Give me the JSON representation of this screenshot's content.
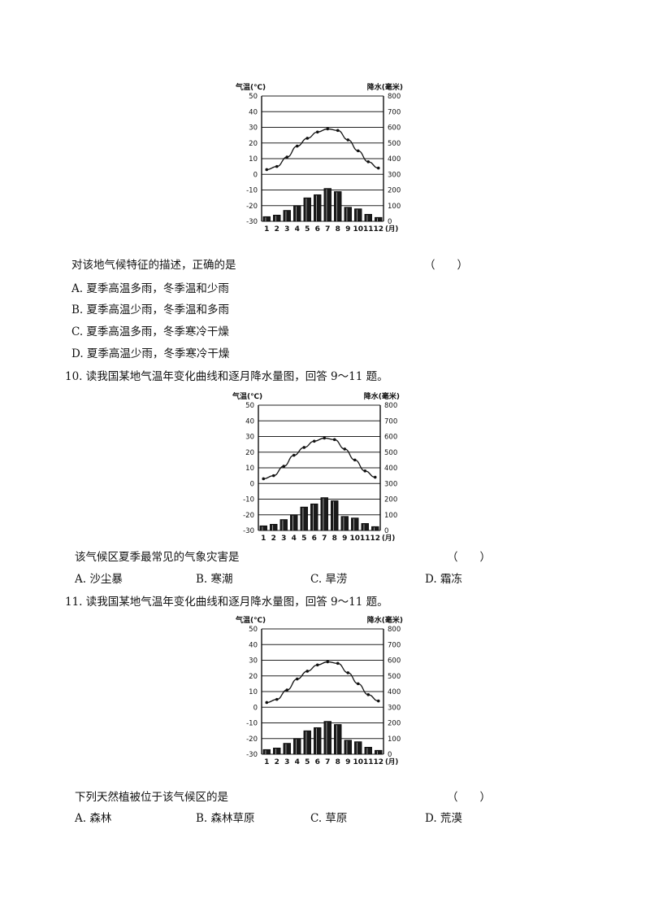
{
  "chart_data": [
    {
      "type": "bar+line",
      "categories": [
        "1",
        "2",
        "3",
        "4",
        "5",
        "6",
        "7",
        "8",
        "9",
        "10",
        "11",
        "12"
      ],
      "x_unit": "(月)",
      "left_axis": {
        "label": "气温(℃)",
        "ticks": [
          "50",
          "40",
          "30",
          "20",
          "10",
          "0",
          "-10",
          "-20",
          "-30"
        ],
        "range": [
          -30,
          50
        ]
      },
      "right_axis": {
        "label": "降水(毫米)",
        "ticks": [
          "800",
          "700",
          "600",
          "500",
          "400",
          "300",
          "200",
          "100",
          "0"
        ],
        "range": [
          0,
          800
        ]
      },
      "series": [
        {
          "kind": "line",
          "axis": "left",
          "values": [
            3,
            5,
            11,
            18,
            23,
            27,
            29,
            28,
            22,
            15,
            8,
            4
          ]
        },
        {
          "kind": "bar",
          "axis": "right",
          "values": [
            30,
            40,
            70,
            100,
            150,
            170,
            210,
            190,
            90,
            80,
            45,
            25
          ]
        }
      ]
    },
    {
      "type": "bar+line",
      "categories": [
        "1",
        "2",
        "3",
        "4",
        "5",
        "6",
        "7",
        "8",
        "9",
        "10",
        "11",
        "12"
      ],
      "x_unit": "(月)",
      "left_axis": {
        "label": "气温(℃)",
        "ticks": [
          "50",
          "40",
          "30",
          "20",
          "10",
          "0",
          "-10",
          "-20",
          "-30"
        ],
        "range": [
          -30,
          50
        ]
      },
      "right_axis": {
        "label": "降水(毫米)",
        "ticks": [
          "800",
          "700",
          "600",
          "500",
          "400",
          "300",
          "200",
          "100",
          "0"
        ],
        "range": [
          0,
          800
        ]
      },
      "series": [
        {
          "kind": "line",
          "axis": "left",
          "values": [
            3,
            5,
            11,
            18,
            23,
            27,
            29,
            28,
            22,
            15,
            8,
            4
          ]
        },
        {
          "kind": "bar",
          "axis": "right",
          "values": [
            30,
            40,
            70,
            100,
            150,
            170,
            210,
            190,
            90,
            80,
            45,
            25
          ]
        }
      ]
    },
    {
      "type": "bar+line",
      "categories": [
        "1",
        "2",
        "3",
        "4",
        "5",
        "6",
        "7",
        "8",
        "9",
        "10",
        "11",
        "12"
      ],
      "x_unit": "(月)",
      "left_axis": {
        "label": "气温(℃)",
        "ticks": [
          "50",
          "40",
          "30",
          "20",
          "10",
          "0",
          "-10",
          "-20",
          "-30"
        ],
        "range": [
          -30,
          50
        ]
      },
      "right_axis": {
        "label": "降水(毫米)",
        "ticks": [
          "800",
          "700",
          "600",
          "500",
          "400",
          "300",
          "200",
          "100",
          "0"
        ],
        "range": [
          0,
          800
        ]
      },
      "series": [
        {
          "kind": "line",
          "axis": "left",
          "values": [
            3,
            5,
            11,
            18,
            23,
            27,
            29,
            28,
            22,
            15,
            8,
            4
          ]
        },
        {
          "kind": "bar",
          "axis": "right",
          "values": [
            30,
            40,
            70,
            100,
            150,
            170,
            210,
            190,
            90,
            80,
            45,
            25
          ]
        }
      ]
    }
  ],
  "q9": {
    "stem": "对该地气候特征的描述，正确的是",
    "paren": "（　　）",
    "options": [
      "A. 夏季高温多雨，冬季温和少雨",
      "B. 夏季高温少雨，冬季温和多雨",
      "C. 夏季高温多雨，冬季寒冷干燥",
      "D. 夏季高温少雨，冬季寒冷干燥"
    ]
  },
  "q10": {
    "intro": "10. 读我国某地气温年变化曲线和逐月降水量图，回答 9～11 题。",
    "stem": "该气候区夏季最常见的气象灾害是",
    "paren": "（　　）",
    "options": [
      "A. 沙尘暴",
      "B. 寒潮",
      "C. 旱涝",
      "D. 霜冻"
    ]
  },
  "q11": {
    "intro": "11. 读我国某地气温年变化曲线和逐月降水量图，回答 9～11 题。",
    "stem": "下列天然植被位于该气候区的是",
    "paren": "（　　）",
    "options": [
      "A. 森林",
      "B. 森林草原",
      "C. 草原",
      "D. 荒漠"
    ]
  }
}
